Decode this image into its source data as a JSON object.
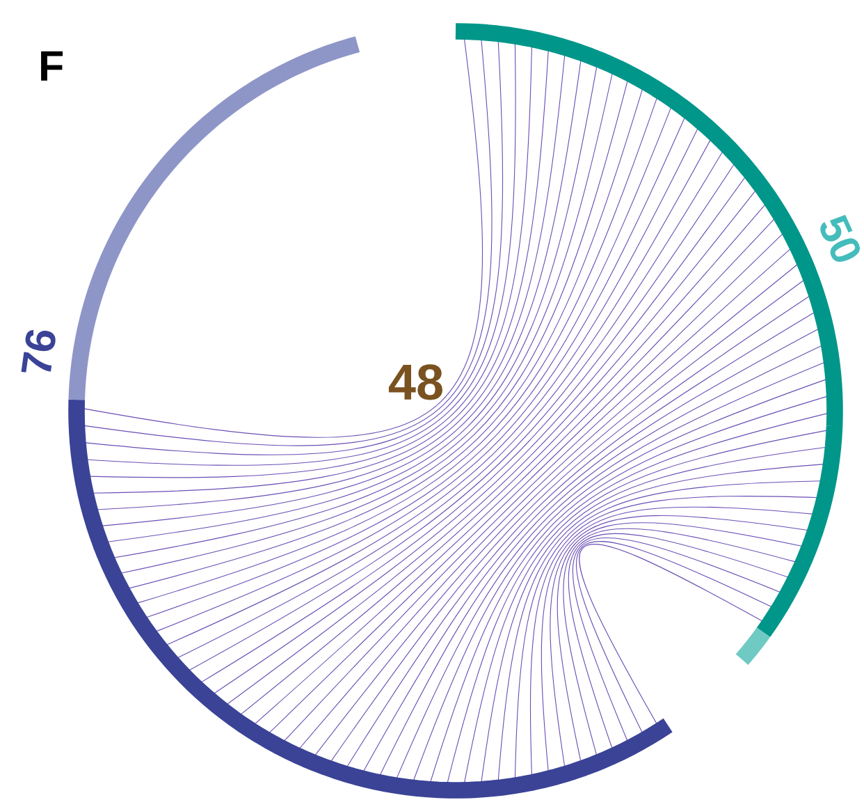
{
  "chart_data": {
    "type": "other",
    "annotations": [
      "F"
    ],
    "categories": [
      null,
      null,
      null
    ],
    "values": [
      50,
      76,
      48
    ],
    "colors": [
      "#00968a",
      "#3a4396",
      "#6a4fb5"
    ],
    "data_labels": true
  }
}
